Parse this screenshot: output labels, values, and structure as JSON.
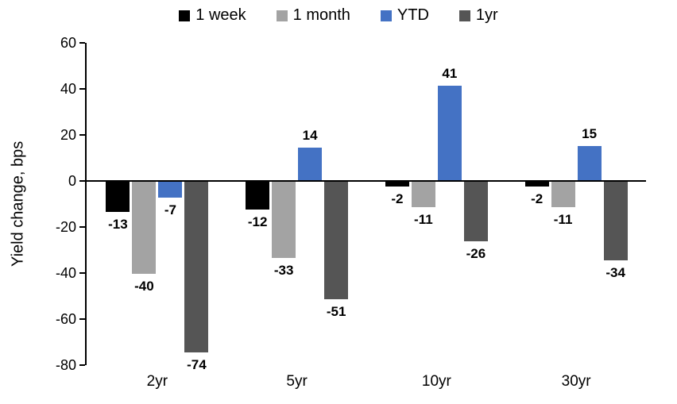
{
  "chart_data": {
    "type": "bar",
    "title": "",
    "ylabel": "Yield change, bps",
    "xlabel": "",
    "categories": [
      "2yr",
      "5yr",
      "10yr",
      "30yr"
    ],
    "series": [
      {
        "name": "1 week",
        "color": "#000000",
        "values": [
          -13,
          -12,
          -2,
          -2
        ]
      },
      {
        "name": "1 month",
        "color": "#A3A3A3",
        "values": [
          -40,
          -33,
          -11,
          -11
        ]
      },
      {
        "name": "YTD",
        "color": "#4472C4",
        "values": [
          -7,
          14,
          41,
          15
        ]
      },
      {
        "name": "1yr",
        "color": "#555555",
        "values": [
          -74,
          -51,
          -26,
          -34
        ]
      }
    ],
    "ylim": [
      -80,
      60
    ],
    "ytick_step": 20,
    "ytick_labels": [
      "60",
      "40",
      "20",
      "0",
      "-20",
      "-40",
      "-60",
      "-80"
    ],
    "data_labels": true,
    "legend_position": "top",
    "grid": false,
    "axis_color": "#000000"
  }
}
